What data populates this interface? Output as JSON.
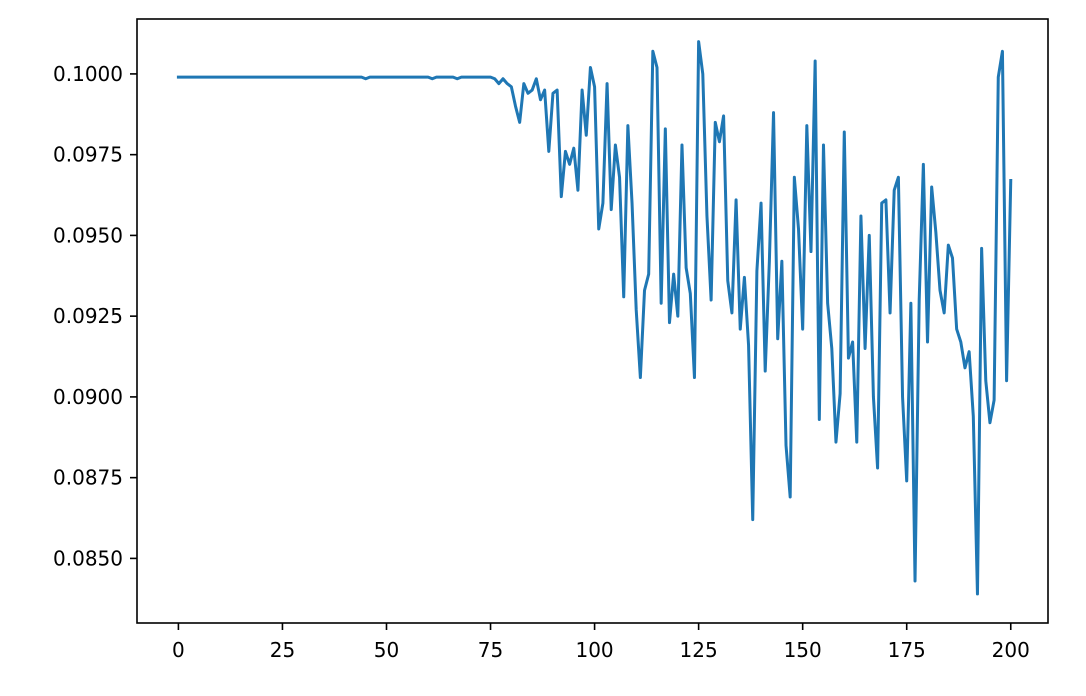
{
  "chart_data": {
    "type": "line",
    "title": "",
    "xlabel": "",
    "ylabel": "",
    "xlim": [
      -9.95,
      208.95
    ],
    "ylim": [
      0.083,
      0.1017
    ],
    "grid": false,
    "legend": "none",
    "x_ticks": [
      0,
      25,
      50,
      75,
      100,
      125,
      150,
      175,
      200
    ],
    "x_tick_labels": [
      "0",
      "25",
      "50",
      "75",
      "100",
      "125",
      "150",
      "175",
      "200"
    ],
    "y_ticks": [
      0.085,
      0.0875,
      0.09,
      0.0925,
      0.095,
      0.0975,
      0.1
    ],
    "y_tick_labels": [
      "0.0850",
      "0.0875",
      "0.0900",
      "0.0925",
      "0.0950",
      "0.0975",
      "0.1000"
    ],
    "series": [
      {
        "color": "#1f77b4",
        "x_start": 0,
        "x_step": 1,
        "values": [
          0.0999,
          0.0999,
          0.0999,
          0.0999,
          0.0999,
          0.0999,
          0.0999,
          0.0999,
          0.0999,
          0.0999,
          0.0999,
          0.0999,
          0.0999,
          0.0999,
          0.0999,
          0.0999,
          0.0999,
          0.0999,
          0.0999,
          0.0999,
          0.0999,
          0.0999,
          0.0999,
          0.0999,
          0.0999,
          0.0999,
          0.0999,
          0.0999,
          0.0999,
          0.0999,
          0.0999,
          0.0999,
          0.0999,
          0.0999,
          0.0999,
          0.0999,
          0.0999,
          0.0999,
          0.0999,
          0.0999,
          0.0999,
          0.0999,
          0.0999,
          0.0999,
          0.0999,
          0.09985,
          0.0999,
          0.0999,
          0.0999,
          0.0999,
          0.0999,
          0.0999,
          0.0999,
          0.0999,
          0.0999,
          0.0999,
          0.0999,
          0.0999,
          0.0999,
          0.0999,
          0.0999,
          0.09985,
          0.0999,
          0.0999,
          0.0999,
          0.0999,
          0.0999,
          0.09985,
          0.0999,
          0.0999,
          0.0999,
          0.0999,
          0.0999,
          0.0999,
          0.0999,
          0.0999,
          0.09985,
          0.0997,
          0.09985,
          0.0997,
          0.0996,
          0.099,
          0.0985,
          0.0997,
          0.0994,
          0.0995,
          0.09985,
          0.0992,
          0.0995,
          0.0976,
          0.0994,
          0.0995,
          0.0962,
          0.0976,
          0.0972,
          0.0977,
          0.0964,
          0.0995,
          0.0981,
          0.1002,
          0.0996,
          0.0952,
          0.096,
          0.0997,
          0.0958,
          0.0978,
          0.0968,
          0.0931,
          0.0984,
          0.096,
          0.0927,
          0.0906,
          0.0933,
          0.0938,
          0.1007,
          0.1002,
          0.0929,
          0.0983,
          0.0923,
          0.0938,
          0.0925,
          0.0978,
          0.094,
          0.0932,
          0.0906,
          0.101,
          0.1,
          0.0956,
          0.093,
          0.0985,
          0.0979,
          0.0987,
          0.0936,
          0.0926,
          0.0961,
          0.0921,
          0.0937,
          0.0916,
          0.0862,
          0.0939,
          0.096,
          0.0908,
          0.0942,
          0.0988,
          0.0918,
          0.0942,
          0.0885,
          0.0869,
          0.0968,
          0.0952,
          0.0921,
          0.0984,
          0.0945,
          0.1004,
          0.0893,
          0.0978,
          0.0929,
          0.0915,
          0.0886,
          0.0901,
          0.0982,
          0.0912,
          0.0917,
          0.0886,
          0.0956,
          0.0915,
          0.095,
          0.09,
          0.0878,
          0.096,
          0.0961,
          0.0926,
          0.0964,
          0.0968,
          0.09,
          0.0874,
          0.0929,
          0.0843,
          0.093,
          0.0972,
          0.0917,
          0.0965,
          0.0951,
          0.0933,
          0.0926,
          0.0947,
          0.0943,
          0.0921,
          0.0917,
          0.0909,
          0.0914,
          0.0894,
          0.0839,
          0.0946,
          0.0905,
          0.0892,
          0.0899,
          0.0999,
          0.1007,
          0.0905,
          0.0967
        ]
      }
    ]
  }
}
